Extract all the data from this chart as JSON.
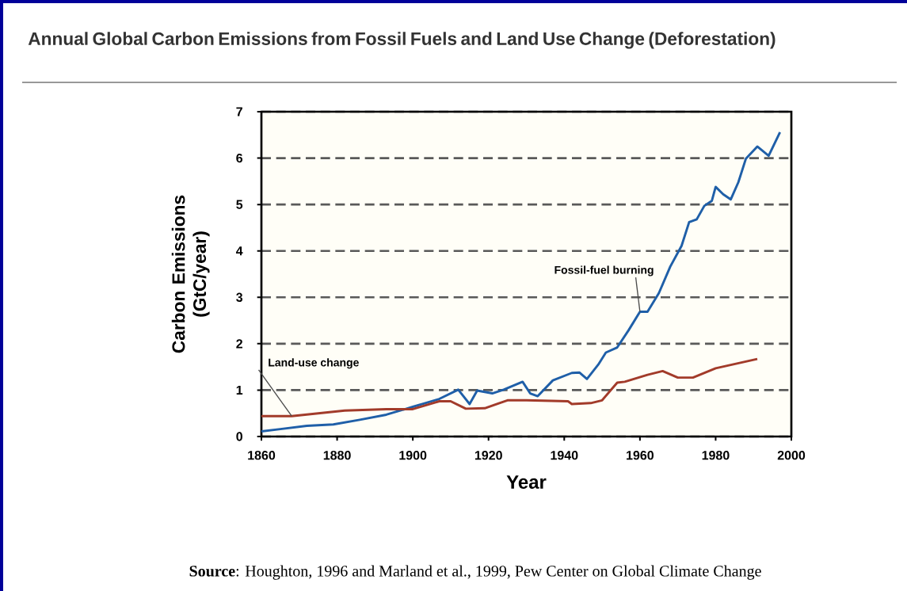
{
  "chart_data": {
    "type": "line",
    "title": "Annual Global Carbon Emissions from Fossil Fuels and Land Use Change (Deforestation)",
    "xlabel": "Year",
    "ylabel": "Carbon Emissions (GtC/year)",
    "xlim": [
      1860,
      2000
    ],
    "xticks": [
      1860,
      1880,
      1900,
      1920,
      1940,
      1960,
      1980,
      2000
    ],
    "ylim": [
      0,
      7
    ],
    "yticks": [
      0,
      1,
      2,
      3,
      4,
      5,
      6,
      7
    ],
    "grid": "y",
    "legend": false,
    "marker": "none",
    "line_style": "solid",
    "annotations": [
      "**Source**: Houghton, 1996 and Marland et al., 1999, Pew Center on Global Climate Change"
    ],
    "series": [
      {
        "name": "Fossil-fuel burning",
        "color": "#1f5fa8",
        "x": [
          1860,
          1865,
          1872,
          1879,
          1886,
          1893,
          1900,
          1907,
          1912,
          1915,
          1917,
          1921,
          1924,
          1929,
          1931,
          1933,
          1937,
          1942,
          1944,
          1946,
          1949,
          1951,
          1954,
          1957,
          1960,
          1962,
          1965,
          1968,
          1971,
          1973,
          1975,
          1977,
          1979,
          1980,
          1982,
          1984,
          1986,
          1988,
          1991,
          1994,
          1997
        ],
        "values": [
          0.11,
          0.16,
          0.23,
          0.26,
          0.36,
          0.47,
          0.64,
          0.81,
          1.01,
          0.7,
          0.99,
          0.93,
          1.01,
          1.18,
          0.93,
          0.87,
          1.21,
          1.37,
          1.38,
          1.24,
          1.55,
          1.81,
          1.92,
          2.29,
          2.69,
          2.69,
          3.09,
          3.66,
          4.11,
          4.62,
          4.68,
          4.97,
          5.08,
          5.38,
          5.22,
          5.11,
          5.48,
          5.99,
          6.25,
          6.05,
          6.56
        ]
      },
      {
        "name": "Land-use change",
        "color": "#a23b2a",
        "x": [
          1860,
          1868,
          1882,
          1893,
          1900,
          1907,
          1910,
          1914,
          1919,
          1925,
          1930,
          1941,
          1942,
          1947,
          1950,
          1954,
          1956,
          1962,
          1966,
          1970,
          1974,
          1980,
          1991
        ],
        "values": [
          0.44,
          0.44,
          0.56,
          0.59,
          0.59,
          0.76,
          0.76,
          0.6,
          0.61,
          0.78,
          0.78,
          0.76,
          0.7,
          0.72,
          0.78,
          1.16,
          1.18,
          1.33,
          1.41,
          1.27,
          1.27,
          1.47,
          1.67
        ]
      }
    ]
  }
}
